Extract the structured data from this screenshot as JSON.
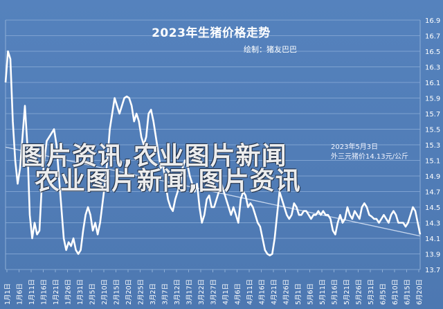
{
  "chart_data": {
    "type": "line",
    "title": "2023年生猪价格走势",
    "author": "绘制：猪友巴巴",
    "annotation_lines": [
      "2023年5月3日",
      "外三元猪价14.13元/公斤"
    ],
    "y_axis_side": "right",
    "ylim": [
      13.7,
      16.9
    ],
    "yticks": [
      13.7,
      13.9,
      14.1,
      14.3,
      14.5,
      14.7,
      14.9,
      15.1,
      15.3,
      15.5,
      15.7,
      15.9,
      16.1,
      16.3,
      16.5,
      16.7,
      16.9
    ],
    "ytick_labels": [
      "13.7",
      "13.9",
      "14.1",
      "14.3",
      "14.5",
      "14.7",
      "14.9",
      "15.1",
      "15.3",
      "15.5",
      "15.7",
      "15.9",
      "16.1",
      "16.3",
      "16.5",
      "16.7",
      "16.9"
    ],
    "grid": true,
    "legend": "none",
    "trendline": {
      "from": 15.27,
      "to": 14.13
    },
    "x_labels": [
      "1月1日",
      "1月6日",
      "1月11日",
      "1月16日",
      "1月21日",
      "1月26日",
      "1月31日",
      "2月5日",
      "2月10日",
      "2月15日",
      "2月20日",
      "2月25日",
      "3月2日",
      "3月7日",
      "3月12日",
      "3月17日",
      "3月22日",
      "3月27日",
      "4月1日",
      "4月6日",
      "4月11日",
      "4月16日",
      "4月21日",
      "4月26日",
      "5月1日",
      "5月6日",
      "5月11日",
      "5月16日",
      "5月21日",
      "5月26日",
      "5月31日",
      "6月5日",
      "6月10日",
      "6月15日",
      "6月20日"
    ],
    "values": [
      16.1,
      16.5,
      16.4,
      15.6,
      15.1,
      14.8,
      15.0,
      15.4,
      15.8,
      15.3,
      14.4,
      14.1,
      14.3,
      14.15,
      14.2,
      14.8,
      15.1,
      15.35,
      15.4,
      15.45,
      15.5,
      15.3,
      14.9,
      14.5,
      14.1,
      13.95,
      14.05,
      14.0,
      14.1,
      13.95,
      13.9,
      13.95,
      14.2,
      14.4,
      14.5,
      14.4,
      14.2,
      14.3,
      14.15,
      14.3,
      14.55,
      14.8,
      15.1,
      15.5,
      15.7,
      15.9,
      15.8,
      15.7,
      15.8,
      15.9,
      15.92,
      15.9,
      15.8,
      15.6,
      15.7,
      15.6,
      15.4,
      15.3,
      15.4,
      15.7,
      15.75,
      15.6,
      15.4,
      15.2,
      15.0,
      15.05,
      14.8,
      14.6,
      14.5,
      14.45,
      14.6,
      14.7,
      14.8,
      15.0,
      15.1,
      15.05,
      14.9,
      14.8,
      14.7,
      14.8,
      14.5,
      14.3,
      14.4,
      14.6,
      14.65,
      14.5,
      14.5,
      14.6,
      14.7,
      14.8,
      14.7,
      14.6,
      14.5,
      14.4,
      14.5,
      14.4,
      14.3,
      14.6,
      14.7,
      14.65,
      14.5,
      14.55,
      14.5,
      14.4,
      14.3,
      14.25,
      14.1,
      13.95,
      13.9,
      13.88,
      13.9,
      14.1,
      14.4,
      14.7,
      14.6,
      14.5,
      14.4,
      14.35,
      14.4,
      14.55,
      14.5,
      14.4,
      14.4,
      14.45,
      14.45,
      14.4,
      14.35,
      14.4,
      14.4,
      14.45,
      14.4,
      14.45,
      14.4,
      14.4,
      14.35,
      14.2,
      14.15,
      14.3,
      14.4,
      14.3,
      14.35,
      14.5,
      14.4,
      14.35,
      14.45,
      14.4,
      14.35,
      14.5,
      14.55,
      14.5,
      14.4,
      14.38,
      14.35,
      14.35,
      14.3,
      14.35,
      14.4,
      14.35,
      14.3,
      14.4,
      14.45,
      14.4,
      14.3,
      14.3,
      14.3,
      14.25,
      14.3,
      14.4,
      14.5,
      14.45,
      14.3,
      14.15
    ]
  },
  "watermark": {
    "line1": "图片资讯,农业图片新闻",
    "line2": "农业图片新闻,图片资讯"
  }
}
